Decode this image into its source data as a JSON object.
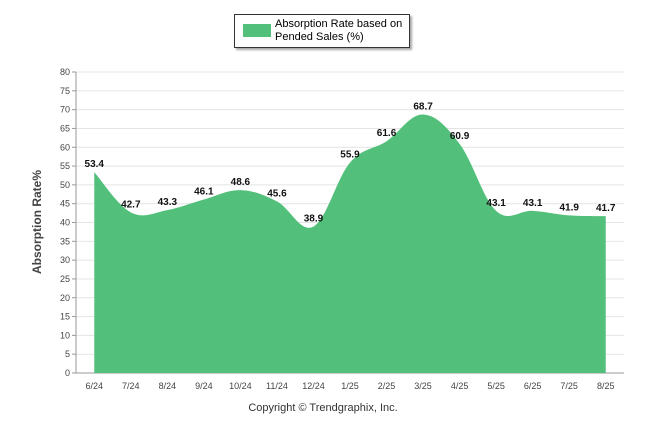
{
  "chart_data": {
    "type": "area",
    "title": "",
    "xlabel": "",
    "ylabel": "Absorption Rate%",
    "ylim": [
      0,
      80
    ],
    "yticks": [
      0,
      5,
      10,
      15,
      20,
      25,
      30,
      35,
      40,
      45,
      50,
      55,
      60,
      65,
      70,
      75,
      80
    ],
    "categories": [
      "6/24",
      "7/24",
      "8/24",
      "9/24",
      "10/24",
      "11/24",
      "12/24",
      "1/25",
      "2/25",
      "3/25",
      "4/25",
      "5/25",
      "6/25",
      "7/25",
      "8/25"
    ],
    "series": [
      {
        "name": "Absorption Rate based on Pended Sales (%)",
        "values": [
          53.4,
          42.7,
          43.3,
          46.1,
          48.6,
          45.6,
          38.9,
          55.9,
          61.6,
          68.7,
          60.9,
          43.1,
          43.1,
          41.9,
          41.7
        ],
        "labels": [
          "53.4",
          "42.7",
          "43.3",
          "46.1",
          "48.6",
          "45.6",
          "38.9",
          "55.9",
          "61.6",
          "68.7",
          "60.9",
          "43.1",
          "43.1",
          "41.9",
          "41.7"
        ],
        "color": "#52c07a"
      }
    ],
    "grid": true,
    "legend_position": "top-center"
  },
  "legend": {
    "label": "Absorption Rate based on Pended Sales (%)"
  },
  "footer": {
    "copyright": "Copyright © Trendgraphix, Inc."
  }
}
